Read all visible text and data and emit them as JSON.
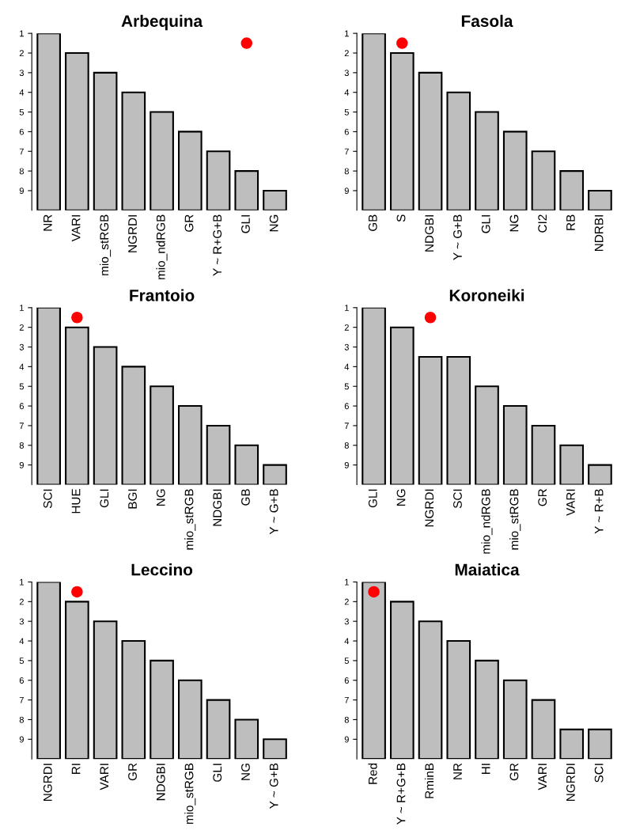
{
  "chart_data": [
    {
      "type": "bar",
      "title": "Arbequina",
      "categories": [
        "NR",
        "VARI",
        "mio_stRGB",
        "NGRDI",
        "mio_ndRGB",
        "GR",
        "Y ~ R+G+B",
        "GLI",
        "NG"
      ],
      "ylim": [
        10,
        1
      ],
      "yticks": [
        1,
        2,
        3,
        4,
        5,
        6,
        7,
        8,
        9
      ],
      "grid": false,
      "series": [
        {
          "type": "bar",
          "color": "#bebebe",
          "base": [
            10,
            10,
            10,
            10,
            10,
            10,
            10,
            10,
            10
          ],
          "values": [
            -9,
            -8,
            -7,
            -6,
            -5,
            -4,
            -3,
            -2,
            -1
          ]
        },
        {
          "type": "scatter",
          "x": [
            "GLI"
          ],
          "values": [
            1.5
          ],
          "color": "#ff0000",
          "marker": "circle"
        }
      ]
    },
    {
      "type": "bar",
      "title": "Fasola",
      "categories": [
        "GB",
        "S",
        "NDGBI",
        "Y ~ G+B",
        "GLI",
        "NG",
        "CI2",
        "RB",
        "NDRBI"
      ],
      "ylim": [
        10,
        1
      ],
      "yticks": [
        1,
        2,
        3,
        4,
        5,
        6,
        7,
        8,
        9
      ],
      "grid": false,
      "series": [
        {
          "type": "bar",
          "color": "#bebebe",
          "base": [
            10,
            10,
            10,
            10,
            10,
            10,
            10,
            10,
            10
          ],
          "values": [
            -9,
            -8,
            -7,
            -6,
            -5,
            -4,
            -3,
            -2,
            -1
          ]
        },
        {
          "type": "scatter",
          "x": [
            "S"
          ],
          "values": [
            1.5
          ],
          "color": "#ff0000",
          "marker": "circle"
        }
      ]
    },
    {
      "type": "bar",
      "title": "Frantoio",
      "categories": [
        "SCI",
        "HUE",
        "GLI",
        "BGI",
        "NG",
        "mio_stRGB",
        "NDGBI",
        "GB",
        "Y ~ G+B"
      ],
      "ylim": [
        10,
        1
      ],
      "yticks": [
        1,
        2,
        3,
        4,
        5,
        6,
        7,
        8,
        9
      ],
      "grid": false,
      "series": [
        {
          "type": "bar",
          "color": "#bebebe",
          "base": [
            10,
            10,
            10,
            10,
            10,
            10,
            10,
            10,
            10
          ],
          "values": [
            -9,
            -8,
            -7,
            -6,
            -5,
            -4,
            -3,
            -2,
            -1
          ]
        },
        {
          "type": "scatter",
          "x": [
            "HUE"
          ],
          "values": [
            1.5
          ],
          "color": "#ff0000",
          "marker": "circle"
        }
      ]
    },
    {
      "type": "bar",
      "title": "Koroneiki",
      "categories": [
        "GLI",
        "NG",
        "NGRDI",
        "SCI",
        "mio_ndRGB",
        "mio_stRGB",
        "GR",
        "VARI",
        "Y ~ R+B"
      ],
      "ylim": [
        10,
        1
      ],
      "yticks": [
        1,
        2,
        3,
        4,
        5,
        6,
        7,
        8,
        9
      ],
      "grid": false,
      "series": [
        {
          "type": "bar",
          "color": "#bebebe",
          "base": [
            10,
            10,
            10,
            10,
            10,
            10,
            10,
            10,
            10
          ],
          "values": [
            -9,
            -8,
            -6.5,
            -6.5,
            -5,
            -4,
            -3,
            -2,
            -1
          ]
        },
        {
          "type": "scatter",
          "x": [
            "NGRDI"
          ],
          "values": [
            1.5
          ],
          "color": "#ff0000",
          "marker": "circle"
        }
      ]
    },
    {
      "type": "bar",
      "title": "Leccino",
      "categories": [
        "NGRDI",
        "RI",
        "VARI",
        "GR",
        "NDGBI",
        "mio_stRGB",
        "GLI",
        "NG",
        "Y ~ G+B"
      ],
      "ylim": [
        10,
        1
      ],
      "yticks": [
        1,
        2,
        3,
        4,
        5,
        6,
        7,
        8,
        9
      ],
      "grid": false,
      "series": [
        {
          "type": "bar",
          "color": "#bebebe",
          "base": [
            10,
            10,
            10,
            10,
            10,
            10,
            10,
            10,
            10
          ],
          "values": [
            -9,
            -8,
            -7,
            -6,
            -5,
            -4,
            -3,
            -2,
            -1
          ]
        },
        {
          "type": "scatter",
          "x": [
            "RI"
          ],
          "values": [
            1.5
          ],
          "color": "#ff0000",
          "marker": "circle"
        }
      ]
    },
    {
      "type": "bar",
      "title": "Maiatica",
      "categories": [
        "Red",
        "Y ~ R+G+B",
        "RminB",
        "NR",
        "HI",
        "GR",
        "VARI",
        "NGRDI",
        "SCI"
      ],
      "ylim": [
        10,
        1
      ],
      "yticks": [
        1,
        2,
        3,
        4,
        5,
        6,
        7,
        8,
        9
      ],
      "grid": false,
      "series": [
        {
          "type": "bar",
          "color": "#bebebe",
          "base": [
            10,
            10,
            10,
            10,
            10,
            10,
            10,
            10,
            10
          ],
          "values": [
            -9,
            -8,
            -7,
            -6,
            -5,
            -4,
            -3,
            -1.5,
            -1.5
          ]
        },
        {
          "type": "scatter",
          "x": [
            "Red"
          ],
          "values": [
            1.5
          ],
          "color": "#ff0000",
          "marker": "circle"
        }
      ]
    }
  ]
}
